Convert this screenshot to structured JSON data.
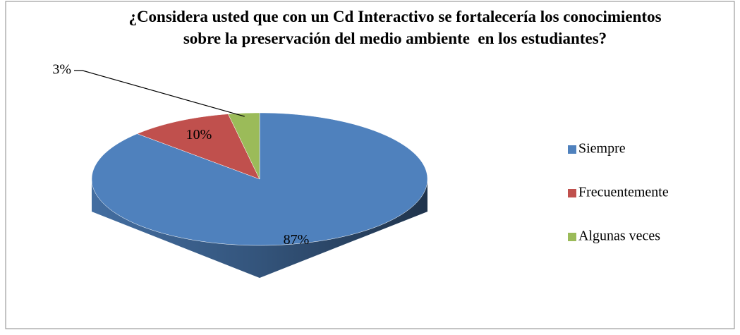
{
  "chart_data": {
    "type": "pie",
    "title": "¿Considera usted que con un Cd Interactivo se fortalecería los conocimientos  sobre la preservación del medio ambiente  en los estudiantes?",
    "categories": [
      "Siempre",
      "Frecuentemente",
      "Algunas veces"
    ],
    "values": [
      87,
      10,
      3
    ],
    "value_labels": [
      "87%",
      "10%",
      "3%"
    ],
    "colors": [
      "#4f81bd",
      "#c0504d",
      "#9bbb59"
    ],
    "legend": "right"
  }
}
